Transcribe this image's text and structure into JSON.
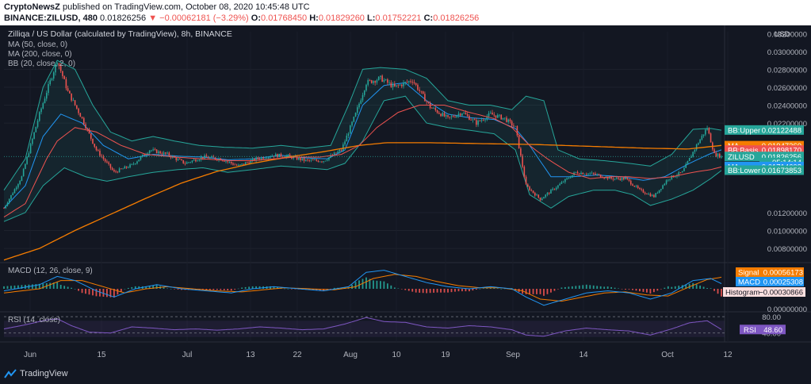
{
  "header": {
    "author": "CryptoNewsZ",
    "published_text": "published on TradingView.com, October 08, 2020 10:45:48 UTC",
    "symbol": "BINANCE:ZILUSD, 480",
    "last_price": "0.01826256",
    "change": "−0.00062181 (−3.29%)",
    "open_label": "O:",
    "open": "0.01768450",
    "high_label": "H:",
    "high": "0.01829260",
    "low_label": "L:",
    "low": "0.01752221",
    "close_label": "C:",
    "close": "0.01826256"
  },
  "legend": {
    "title": "Zilliqa / US Dollar (calculated by TradingView), 8h, BINANCE",
    "ma50": "MA (50, close, 0)",
    "ma200": "MA (200, close, 0)",
    "bb": "BB (20, close, 2, 0)",
    "macd": "MACD (12, 26, close, 9)",
    "rsi": "RSI (14, close)"
  },
  "currency_label": "USD",
  "colors": {
    "background": "#131722",
    "up": "#26a69a",
    "down": "#ef5350",
    "ma50": "#ef5350",
    "ma200": "#f57c00",
    "bb_basis": "#2196f3",
    "bb_band": "#26a69a",
    "macd_line": "#2196f3",
    "signal_line": "#f57c00",
    "rsi_line": "#7e57c2"
  },
  "chart_data": [
    {
      "type": "candlestick",
      "x_ticks": [
        "Jun",
        "15",
        "Jul",
        "13",
        "22",
        "Aug",
        "10",
        "19",
        "Sep",
        "14",
        "Oct",
        "12"
      ],
      "y_ticks": [
        "0.02800000",
        "0.02600000",
        "0.02400000",
        "0.02200000",
        "0.01200000",
        "0.01000000",
        "0.00800000"
      ],
      "y_ticks_partial": [
        "0.03000000",
        "0.03200000"
      ],
      "ylim": [
        0.0065,
        0.0322
      ],
      "price_path": [
        [
          0,
          0.0125
        ],
        [
          10,
          0.016
        ],
        [
          20,
          0.023
        ],
        [
          24,
          0.0255
        ],
        [
          30,
          0.029
        ],
        [
          36,
          0.0255
        ],
        [
          44,
          0.0225
        ],
        [
          52,
          0.019
        ],
        [
          62,
          0.0165
        ],
        [
          72,
          0.0173
        ],
        [
          82,
          0.019
        ],
        [
          92,
          0.0185
        ],
        [
          102,
          0.0175
        ],
        [
          112,
          0.0182
        ],
        [
          122,
          0.018
        ],
        [
          132,
          0.0172
        ],
        [
          142,
          0.018
        ],
        [
          152,
          0.0184
        ],
        [
          160,
          0.0183
        ],
        [
          170,
          0.0178
        ],
        [
          180,
          0.0178
        ],
        [
          190,
          0.019
        ],
        [
          198,
          0.023
        ],
        [
          204,
          0.0265
        ],
        [
          212,
          0.027
        ],
        [
          220,
          0.026
        ],
        [
          230,
          0.0268
        ],
        [
          240,
          0.0238
        ],
        [
          250,
          0.0225
        ],
        [
          258,
          0.0232
        ],
        [
          266,
          0.022
        ],
        [
          274,
          0.023
        ],
        [
          282,
          0.0225
        ],
        [
          288,
          0.0215
        ],
        [
          294,
          0.015
        ],
        [
          302,
          0.0135
        ],
        [
          312,
          0.015
        ],
        [
          322,
          0.0165
        ],
        [
          332,
          0.0163
        ],
        [
          342,
          0.0158
        ],
        [
          350,
          0.0158
        ],
        [
          358,
          0.0145
        ],
        [
          366,
          0.0138
        ],
        [
          374,
          0.0158
        ],
        [
          382,
          0.0165
        ],
        [
          390,
          0.0195
        ],
        [
          396,
          0.0215
        ],
        [
          400,
          0.0185
        ],
        [
          404,
          0.0183
        ]
      ],
      "last_value": 0.01826256,
      "ma50_path": [
        [
          0,
          0.0115
        ],
        [
          12,
          0.013
        ],
        [
          24,
          0.018
        ],
        [
          30,
          0.02
        ],
        [
          40,
          0.0215
        ],
        [
          52,
          0.021
        ],
        [
          66,
          0.0195
        ],
        [
          80,
          0.0185
        ],
        [
          96,
          0.0182
        ],
        [
          112,
          0.018
        ],
        [
          128,
          0.0178
        ],
        [
          140,
          0.0178
        ],
        [
          152,
          0.018
        ],
        [
          164,
          0.0182
        ],
        [
          178,
          0.0182
        ],
        [
          190,
          0.0185
        ],
        [
          200,
          0.0195
        ],
        [
          210,
          0.0215
        ],
        [
          222,
          0.0232
        ],
        [
          234,
          0.024
        ],
        [
          248,
          0.024
        ],
        [
          262,
          0.0232
        ],
        [
          276,
          0.0225
        ],
        [
          286,
          0.0215
        ],
        [
          296,
          0.0195
        ],
        [
          306,
          0.018
        ],
        [
          318,
          0.0165
        ],
        [
          330,
          0.0158
        ],
        [
          342,
          0.016
        ],
        [
          352,
          0.016
        ],
        [
          364,
          0.0158
        ],
        [
          376,
          0.016
        ],
        [
          388,
          0.0165
        ],
        [
          398,
          0.0168
        ],
        [
          404,
          0.0171
        ]
      ],
      "ma200_path": [
        [
          0,
          0.0067
        ],
        [
          20,
          0.008
        ],
        [
          40,
          0.01
        ],
        [
          60,
          0.0118
        ],
        [
          80,
          0.0136
        ],
        [
          100,
          0.0153
        ],
        [
          120,
          0.0166
        ],
        [
          140,
          0.0175
        ],
        [
          160,
          0.0182
        ],
        [
          180,
          0.0188
        ],
        [
          200,
          0.0195
        ],
        [
          215,
          0.0198
        ],
        [
          240,
          0.0198
        ],
        [
          270,
          0.0197
        ],
        [
          300,
          0.0196
        ],
        [
          330,
          0.0194
        ],
        [
          360,
          0.0192
        ],
        [
          385,
          0.0191
        ],
        [
          404,
          0.0195
        ]
      ],
      "bb_upper_path": [
        [
          0,
          0.0145
        ],
        [
          12,
          0.018
        ],
        [
          22,
          0.026
        ],
        [
          30,
          0.029
        ],
        [
          40,
          0.028
        ],
        [
          50,
          0.024
        ],
        [
          60,
          0.021
        ],
        [
          72,
          0.02
        ],
        [
          84,
          0.0205
        ],
        [
          96,
          0.02
        ],
        [
          110,
          0.0195
        ],
        [
          124,
          0.0193
        ],
        [
          140,
          0.0192
        ],
        [
          156,
          0.0195
        ],
        [
          170,
          0.0192
        ],
        [
          184,
          0.0195
        ],
        [
          194,
          0.024
        ],
        [
          202,
          0.028
        ],
        [
          212,
          0.0282
        ],
        [
          226,
          0.028
        ],
        [
          238,
          0.027
        ],
        [
          250,
          0.0245
        ],
        [
          262,
          0.024
        ],
        [
          274,
          0.024
        ],
        [
          286,
          0.0235
        ],
        [
          294,
          0.025
        ],
        [
          304,
          0.0245
        ],
        [
          312,
          0.019
        ],
        [
          324,
          0.018
        ],
        [
          338,
          0.0178
        ],
        [
          352,
          0.0175
        ],
        [
          364,
          0.0172
        ],
        [
          376,
          0.0185
        ],
        [
          388,
          0.0213
        ],
        [
          398,
          0.0214
        ],
        [
          404,
          0.0212
        ]
      ],
      "bb_lower_path": [
        [
          0,
          0.011
        ],
        [
          12,
          0.012
        ],
        [
          22,
          0.015
        ],
        [
          34,
          0.017
        ],
        [
          46,
          0.016
        ],
        [
          58,
          0.0155
        ],
        [
          70,
          0.016
        ],
        [
          84,
          0.0165
        ],
        [
          98,
          0.0168
        ],
        [
          112,
          0.017
        ],
        [
          126,
          0.0165
        ],
        [
          140,
          0.0168
        ],
        [
          156,
          0.0172
        ],
        [
          170,
          0.017
        ],
        [
          182,
          0.0168
        ],
        [
          192,
          0.0175
        ],
        [
          202,
          0.02
        ],
        [
          214,
          0.0245
        ],
        [
          226,
          0.025
        ],
        [
          238,
          0.022
        ],
        [
          250,
          0.0215
        ],
        [
          262,
          0.0212
        ],
        [
          276,
          0.0208
        ],
        [
          288,
          0.019
        ],
        [
          296,
          0.014
        ],
        [
          308,
          0.0125
        ],
        [
          318,
          0.0138
        ],
        [
          332,
          0.0145
        ],
        [
          344,
          0.0145
        ],
        [
          354,
          0.014
        ],
        [
          364,
          0.0128
        ],
        [
          376,
          0.0135
        ],
        [
          388,
          0.0145
        ],
        [
          398,
          0.0158
        ],
        [
          404,
          0.0167
        ]
      ],
      "bb_basis_path": [
        [
          0,
          0.0125
        ],
        [
          12,
          0.015
        ],
        [
          22,
          0.0205
        ],
        [
          32,
          0.023
        ],
        [
          44,
          0.022
        ],
        [
          56,
          0.0195
        ],
        [
          70,
          0.018
        ],
        [
          84,
          0.0185
        ],
        [
          98,
          0.0183
        ],
        [
          112,
          0.0182
        ],
        [
          126,
          0.0179
        ],
        [
          140,
          0.018
        ],
        [
          156,
          0.0184
        ],
        [
          170,
          0.0181
        ],
        [
          182,
          0.018
        ],
        [
          192,
          0.019
        ],
        [
          202,
          0.024
        ],
        [
          214,
          0.0262
        ],
        [
          226,
          0.0265
        ],
        [
          238,
          0.0245
        ],
        [
          250,
          0.023
        ],
        [
          262,
          0.0226
        ],
        [
          276,
          0.0224
        ],
        [
          288,
          0.0214
        ],
        [
          296,
          0.0195
        ],
        [
          308,
          0.016
        ],
        [
          320,
          0.016
        ],
        [
          334,
          0.0162
        ],
        [
          348,
          0.016
        ],
        [
          360,
          0.0156
        ],
        [
          372,
          0.016
        ],
        [
          386,
          0.0175
        ],
        [
          398,
          0.0186
        ],
        [
          404,
          0.019
        ]
      ],
      "price_labels": [
        {
          "label": "BB:Upper",
          "value": "0.02122488",
          "color": "#26a69a",
          "y": 0.02122488
        },
        {
          "label": "MA",
          "value": "0.01947360",
          "color": "#f57c00",
          "y": 0.0194736
        },
        {
          "label": "BB:Basis",
          "value": "0.01898170",
          "color": "#ef5350",
          "y": 0.0189817
        },
        {
          "label": "ZILUSD",
          "value": "0.01826256",
          "color": "#26a69a",
          "y": 0.01826256
        },
        {
          "label": "",
          "value": "05:14:14",
          "color": "#26a69a",
          "y": 0.0176
        },
        {
          "label": "MA",
          "value": "0.01714608",
          "color": "#2196f3",
          "y": 0.01714608
        },
        {
          "label": "BB:Lower",
          "value": "0.01673853",
          "color": "#26a69a",
          "y": 0.01673853
        }
      ],
      "price_label_partial": "0."
    },
    {
      "type": "macd",
      "series": [
        {
          "name": "Signal",
          "value": "0.00056173",
          "color": "#f57c00"
        },
        {
          "name": "MACD",
          "value": "0.00025308",
          "color": "#2196f3"
        },
        {
          "name": "Histogram",
          "value": "−0.00030866",
          "color": "#ef5350"
        }
      ],
      "y_tick": "0.00000000",
      "macd_path": [
        [
          0,
          -0.1
        ],
        [
          20,
          0.2
        ],
        [
          30,
          0.6
        ],
        [
          40,
          0.4
        ],
        [
          52,
          -0.1
        ],
        [
          62,
          -0.4
        ],
        [
          74,
          0.0
        ],
        [
          86,
          0.2
        ],
        [
          100,
          0.0
        ],
        [
          114,
          -0.1
        ],
        [
          128,
          -0.2
        ],
        [
          140,
          0.0
        ],
        [
          152,
          0.1
        ],
        [
          166,
          0.0
        ],
        [
          180,
          -0.1
        ],
        [
          194,
          0.1
        ],
        [
          204,
          0.8
        ],
        [
          214,
          0.9
        ],
        [
          226,
          0.6
        ],
        [
          238,
          0.3
        ],
        [
          250,
          0.1
        ],
        [
          262,
          0.0
        ],
        [
          274,
          0.1
        ],
        [
          286,
          0.0
        ],
        [
          294,
          -0.4
        ],
        [
          304,
          -0.8
        ],
        [
          316,
          -0.5
        ],
        [
          328,
          -0.2
        ],
        [
          340,
          -0.1
        ],
        [
          352,
          -0.2
        ],
        [
          364,
          -0.5
        ],
        [
          376,
          -0.2
        ],
        [
          388,
          0.4
        ],
        [
          398,
          0.5
        ],
        [
          404,
          0.25
        ]
      ],
      "signal_path": [
        [
          0,
          -0.2
        ],
        [
          20,
          0.0
        ],
        [
          32,
          0.4
        ],
        [
          44,
          0.4
        ],
        [
          56,
          0.1
        ],
        [
          68,
          -0.2
        ],
        [
          80,
          0.0
        ],
        [
          92,
          0.1
        ],
        [
          106,
          0.0
        ],
        [
          120,
          -0.1
        ],
        [
          134,
          -0.15
        ],
        [
          146,
          -0.05
        ],
        [
          158,
          0.05
        ],
        [
          172,
          0.0
        ],
        [
          186,
          -0.05
        ],
        [
          198,
          0.1
        ],
        [
          208,
          0.5
        ],
        [
          220,
          0.7
        ],
        [
          232,
          0.6
        ],
        [
          244,
          0.35
        ],
        [
          256,
          0.15
        ],
        [
          268,
          0.05
        ],
        [
          280,
          0.05
        ],
        [
          292,
          -0.1
        ],
        [
          302,
          -0.5
        ],
        [
          314,
          -0.6
        ],
        [
          326,
          -0.4
        ],
        [
          338,
          -0.2
        ],
        [
          350,
          -0.15
        ],
        [
          362,
          -0.3
        ],
        [
          374,
          -0.35
        ],
        [
          386,
          0.1
        ],
        [
          396,
          0.45
        ],
        [
          404,
          0.56
        ]
      ]
    },
    {
      "type": "line",
      "series": [
        {
          "name": "RSI",
          "value": "48.60",
          "color": "#7e57c2"
        }
      ],
      "y_ticks": [
        "80.00",
        "40.00"
      ],
      "ylim": [
        20,
        90
      ],
      "band": [
        30,
        70
      ],
      "values_path": [
        [
          0,
          50
        ],
        [
          12,
          60
        ],
        [
          24,
          72
        ],
        [
          30,
          75
        ],
        [
          38,
          58
        ],
        [
          48,
          42
        ],
        [
          60,
          40
        ],
        [
          72,
          55
        ],
        [
          84,
          52
        ],
        [
          96,
          48
        ],
        [
          108,
          50
        ],
        [
          120,
          47
        ],
        [
          132,
          50
        ],
        [
          144,
          55
        ],
        [
          156,
          52
        ],
        [
          168,
          48
        ],
        [
          180,
          50
        ],
        [
          192,
          62
        ],
        [
          204,
          78
        ],
        [
          214,
          68
        ],
        [
          226,
          66
        ],
        [
          238,
          55
        ],
        [
          250,
          52
        ],
        [
          262,
          58
        ],
        [
          274,
          55
        ],
        [
          286,
          48
        ],
        [
          294,
          35
        ],
        [
          304,
          32
        ],
        [
          316,
          45
        ],
        [
          328,
          52
        ],
        [
          340,
          48
        ],
        [
          352,
          45
        ],
        [
          364,
          35
        ],
        [
          376,
          50
        ],
        [
          386,
          65
        ],
        [
          396,
          70
        ],
        [
          404,
          48.6
        ]
      ]
    }
  ],
  "footer": {
    "brand": "TradingView"
  }
}
